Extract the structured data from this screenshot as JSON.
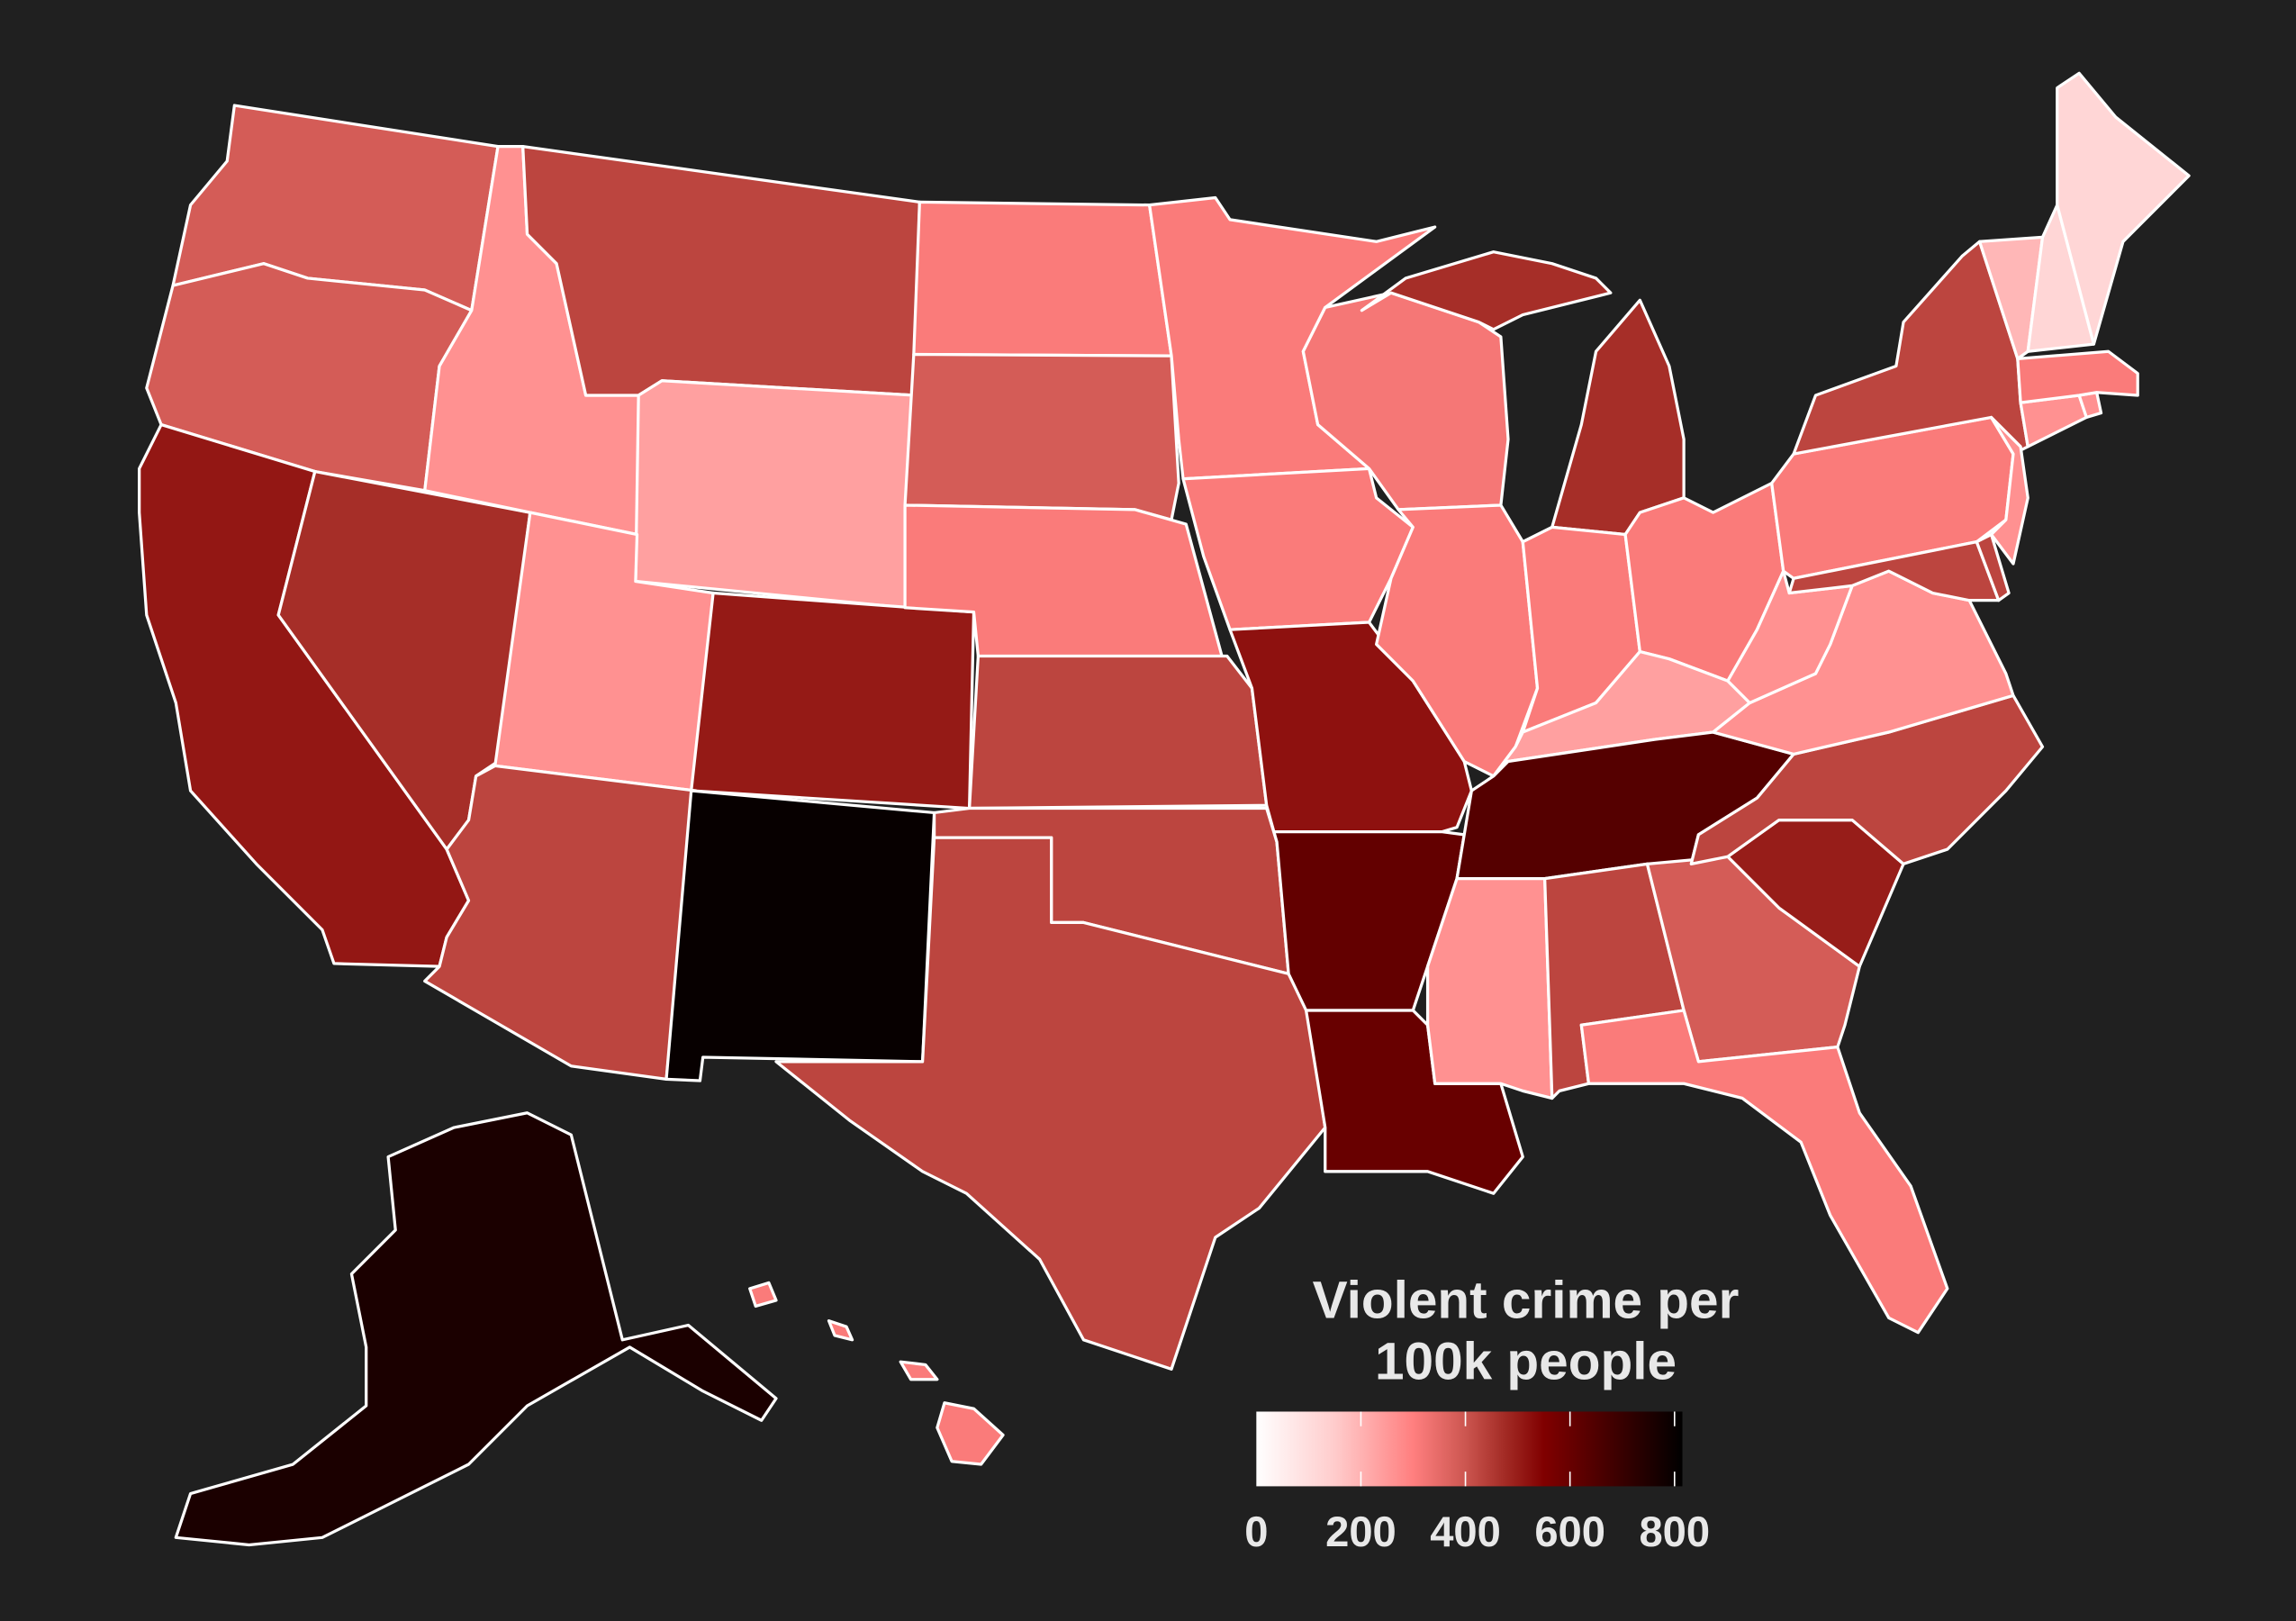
{
  "chart_data": {
    "type": "choropleth",
    "legend": {
      "title_line1": "Violent crime per",
      "title_line2": "100k people",
      "ticks": [
        0,
        200,
        400,
        600,
        800
      ],
      "tick_labels": [
        "0",
        "200",
        "400",
        "600",
        "800"
      ],
      "range": [
        0,
        815
      ],
      "placement": "bottom-right",
      "color_stops": [
        {
          "value": 0,
          "color": "#ffffff"
        },
        {
          "value": 150,
          "color": "#ffcccc"
        },
        {
          "value": 300,
          "color": "#ff7f7f"
        },
        {
          "value": 400,
          "color": "#cc5650"
        },
        {
          "value": 475,
          "color": "#a32b25"
        },
        {
          "value": 550,
          "color": "#800000"
        },
        {
          "value": 815,
          "color": "#000000"
        }
      ]
    },
    "border_color": "#ffffff",
    "background_color": "#202020",
    "states": [
      {
        "state": "WA",
        "value": 385
      },
      {
        "state": "OR",
        "value": 385
      },
      {
        "state": "CA",
        "value": 510
      },
      {
        "state": "NV",
        "value": 470
      },
      {
        "state": "ID",
        "value": 265
      },
      {
        "state": "MT",
        "value": 430
      },
      {
        "state": "WY",
        "value": 235
      },
      {
        "state": "UT",
        "value": 265
      },
      {
        "state": "CO",
        "value": 505
      },
      {
        "state": "AZ",
        "value": 430
      },
      {
        "state": "NM",
        "value": 800
      },
      {
        "state": "ND",
        "value": 310
      },
      {
        "state": "SD",
        "value": 385
      },
      {
        "state": "NE",
        "value": 310
      },
      {
        "state": "KS",
        "value": 430
      },
      {
        "state": "OK",
        "value": 430
      },
      {
        "state": "TX",
        "value": 430
      },
      {
        "state": "MN",
        "value": 310
      },
      {
        "state": "IA",
        "value": 310
      },
      {
        "state": "MO",
        "value": 520
      },
      {
        "state": "AR",
        "value": 610
      },
      {
        "state": "LA",
        "value": 600
      },
      {
        "state": "WI",
        "value": 320
      },
      {
        "state": "IL",
        "value": 310
      },
      {
        "state": "MI",
        "value": 470
      },
      {
        "state": "IN",
        "value": 310
      },
      {
        "state": "OH",
        "value": 310
      },
      {
        "state": "KY",
        "value": 235
      },
      {
        "state": "TN",
        "value": 640
      },
      {
        "state": "MS",
        "value": 265
      },
      {
        "state": "AL",
        "value": 430
      },
      {
        "state": "GA",
        "value": 385
      },
      {
        "state": "FL",
        "value": 310
      },
      {
        "state": "SC",
        "value": 500
      },
      {
        "state": "NC",
        "value": 430
      },
      {
        "state": "VA",
        "value": 265
      },
      {
        "state": "WV",
        "value": 265
      },
      {
        "state": "PA",
        "value": 310
      },
      {
        "state": "NY",
        "value": 430
      },
      {
        "state": "MD",
        "value": 430
      },
      {
        "state": "DE",
        "value": 430
      },
      {
        "state": "NJ",
        "value": 265
      },
      {
        "state": "CT",
        "value": 265
      },
      {
        "state": "RI",
        "value": 265
      },
      {
        "state": "MA",
        "value": 310
      },
      {
        "state": "VT",
        "value": 190
      },
      {
        "state": "NH",
        "value": 120
      },
      {
        "state": "ME",
        "value": 120
      },
      {
        "state": "AK",
        "value": 760
      },
      {
        "state": "HI",
        "value": 310
      }
    ]
  }
}
